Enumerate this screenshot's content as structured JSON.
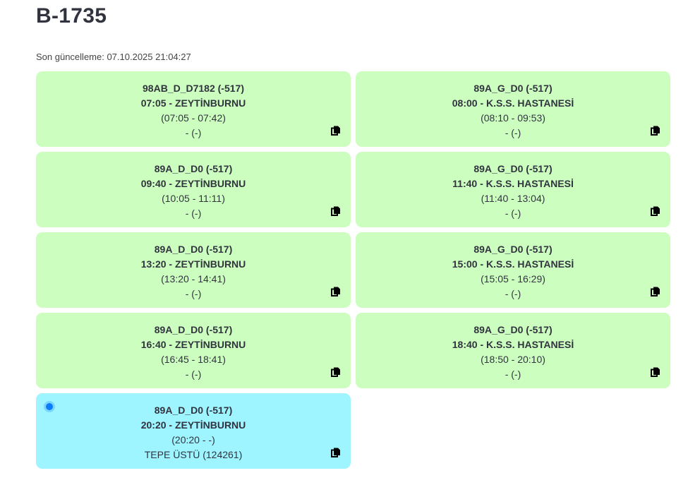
{
  "header": {
    "title": "B-1735",
    "last_update": "Son güncelleme: 07.10.2025 21:04:27"
  },
  "colors": {
    "completed": "#ccffbf",
    "active": "#9ef5ff",
    "indicator": "#0a7cff"
  },
  "trips": [
    {
      "code": "98AB_D_D7182 (-517)",
      "departure": "07:05 - ZEYTİNBURNU",
      "times": "(07:05 - 07:42)",
      "location": "- (-)",
      "active": false
    },
    {
      "code": "89A_G_D0 (-517)",
      "departure": "08:00 - K.S.S. HASTANESİ",
      "times": "(08:10 - 09:53)",
      "location": "- (-)",
      "active": false
    },
    {
      "code": "89A_D_D0 (-517)",
      "departure": "09:40 - ZEYTİNBURNU",
      "times": "(10:05 - 11:11)",
      "location": "- (-)",
      "active": false
    },
    {
      "code": "89A_G_D0 (-517)",
      "departure": "11:40 - K.S.S. HASTANESİ",
      "times": "(11:40 - 13:04)",
      "location": "- (-)",
      "active": false
    },
    {
      "code": "89A_D_D0 (-517)",
      "departure": "13:20 - ZEYTİNBURNU",
      "times": "(13:20 - 14:41)",
      "location": "- (-)",
      "active": false
    },
    {
      "code": "89A_G_D0 (-517)",
      "departure": "15:00 - K.S.S. HASTANESİ",
      "times": "(15:05 - 16:29)",
      "location": "- (-)",
      "active": false
    },
    {
      "code": "89A_D_D0 (-517)",
      "departure": "16:40 - ZEYTİNBURNU",
      "times": "(16:45 - 18:41)",
      "location": "- (-)",
      "active": false
    },
    {
      "code": "89A_G_D0 (-517)",
      "departure": "18:40 - K.S.S. HASTANESİ",
      "times": "(18:50 - 20:10)",
      "location": "- (-)",
      "active": false
    },
    {
      "code": "89A_D_D0 (-517)",
      "departure": "20:20 - ZEYTİNBURNU",
      "times": "(20:20 - -)",
      "location": "TEPE ÜSTÜ (124261)",
      "active": true
    }
  ]
}
